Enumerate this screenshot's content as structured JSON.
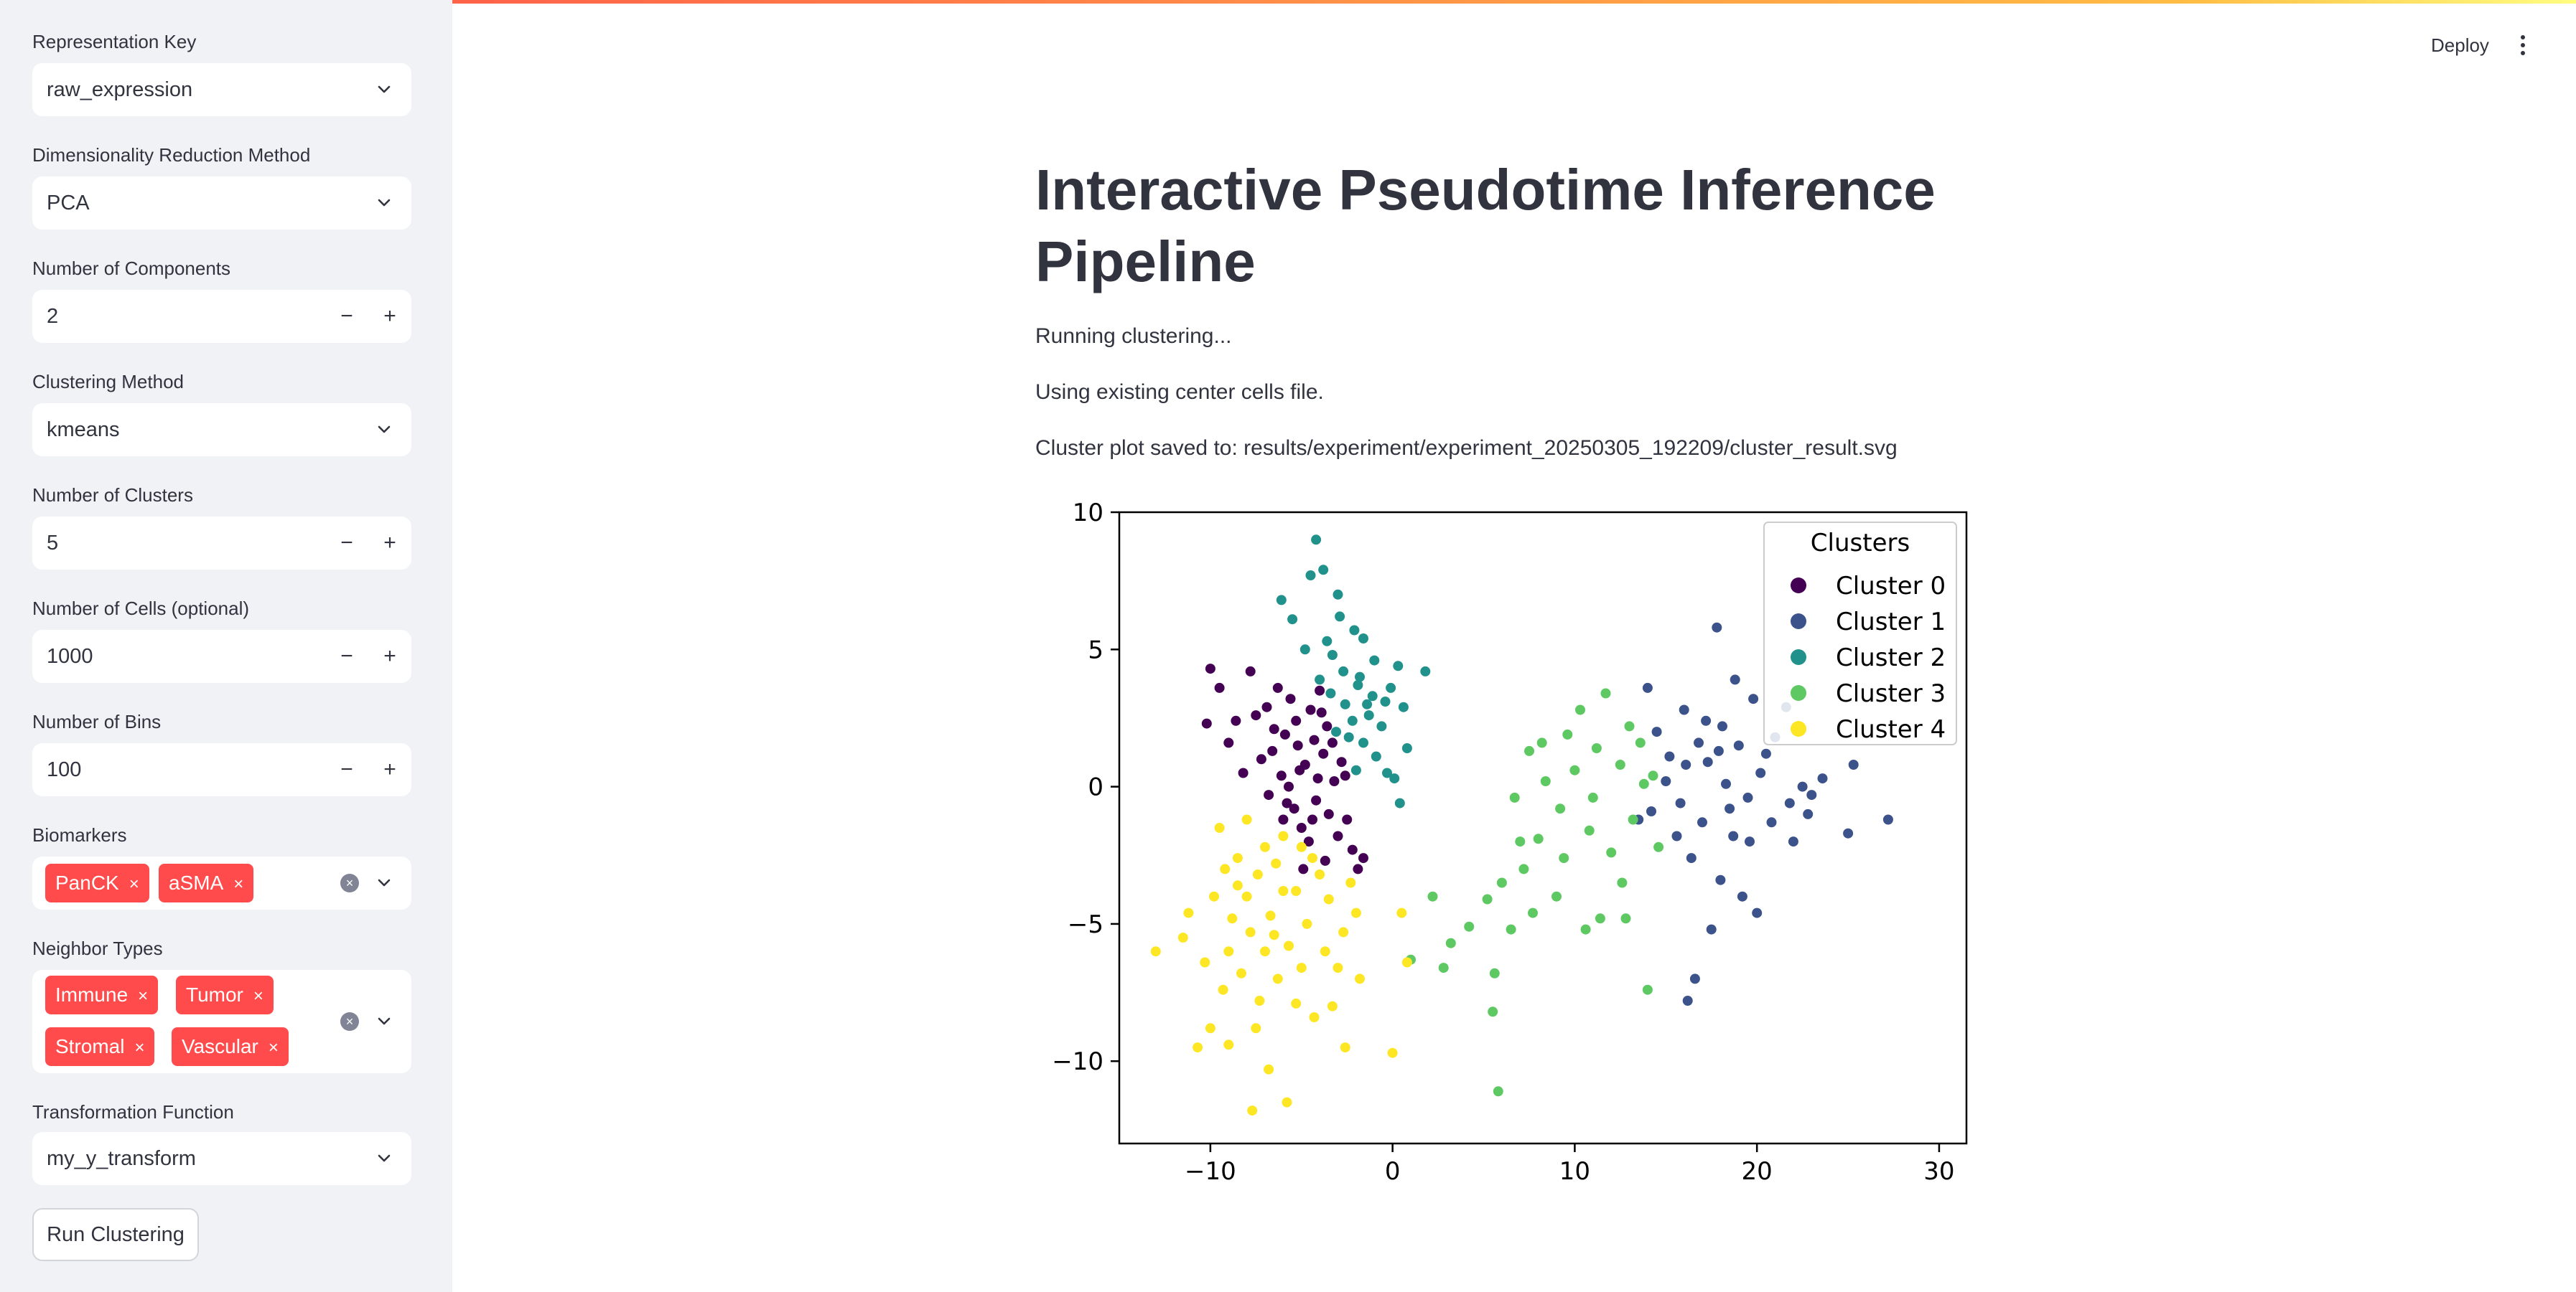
{
  "sidebar": {
    "representation_key": {
      "label": "Representation Key",
      "value": "raw_expression"
    },
    "dim_reduction": {
      "label": "Dimensionality Reduction Method",
      "value": "PCA"
    },
    "n_components": {
      "label": "Number of Components",
      "value": "2"
    },
    "clustering_method": {
      "label": "Clustering Method",
      "value": "kmeans"
    },
    "n_clusters": {
      "label": "Number of Clusters",
      "value": "5"
    },
    "n_cells": {
      "label": "Number of Cells (optional)",
      "value": "1000"
    },
    "n_bins": {
      "label": "Number of Bins",
      "value": "100"
    },
    "biomarkers": {
      "label": "Biomarkers",
      "tags": [
        "PanCK",
        "aSMA"
      ]
    },
    "neighbor_types": {
      "label": "Neighbor Types",
      "tags": [
        "Immune",
        "Tumor",
        "Stromal",
        "Vascular"
      ]
    },
    "transform": {
      "label": "Transformation Function",
      "value": "my_y_transform"
    },
    "stepper_minus": "−",
    "stepper_plus": "+",
    "tag_remove": "×",
    "run_button": "Run Clustering"
  },
  "header": {
    "deploy": "Deploy"
  },
  "main": {
    "title": "Interactive Pseudotime Inference Pipeline",
    "messages": [
      "Running clustering...",
      "Using existing center cells file.",
      "Cluster plot saved to: results/experiment/experiment_20250305_192209/cluster_result.svg"
    ]
  },
  "colors": {
    "accent": "#ff4b4b",
    "cluster0": "#440154",
    "cluster1": "#3b528b",
    "cluster2": "#21918c",
    "cluster3": "#5ec962",
    "cluster4": "#fde725"
  },
  "chart_data": {
    "type": "scatter",
    "title": "",
    "xlabel": "",
    "ylabel": "",
    "xlim": [
      -15,
      31.5
    ],
    "ylim": [
      -13,
      10
    ],
    "xticks": [
      -10,
      0,
      10,
      20,
      30
    ],
    "yticks": [
      10,
      5,
      0,
      -5,
      -10
    ],
    "grid": false,
    "legend": {
      "title": "Clusters",
      "position": "top-right"
    },
    "series": [
      {
        "name": "Cluster 0",
        "color": "#440154",
        "points": [
          [
            -5.2,
            1.5
          ],
          [
            -4.5,
            2.8
          ],
          [
            -6.1,
            0.4
          ],
          [
            -3.8,
            1.2
          ],
          [
            -5.6,
            3.2
          ],
          [
            -4.2,
            -0.5
          ],
          [
            -6.5,
            2.1
          ],
          [
            -3.5,
            -1.0
          ],
          [
            -5.0,
            -1.5
          ],
          [
            -4.8,
            0.8
          ],
          [
            -6.8,
            -0.3
          ],
          [
            -3.2,
            0.2
          ],
          [
            -5.9,
            1.9
          ],
          [
            -4.0,
            3.5
          ],
          [
            -6.3,
            3.6
          ],
          [
            -7.2,
            1.0
          ],
          [
            -7.5,
            2.6
          ],
          [
            -5.4,
            -0.8
          ],
          [
            -4.6,
            -2.0
          ],
          [
            -3.0,
            -1.8
          ],
          [
            -2.5,
            -1.2
          ],
          [
            -3.6,
            2.2
          ],
          [
            -4.3,
            1.7
          ],
          [
            -5.7,
            0.0
          ],
          [
            -6.0,
            -1.2
          ],
          [
            -2.8,
            0.9
          ],
          [
            -8.2,
            0.5
          ],
          [
            -9.5,
            3.6
          ],
          [
            -10.2,
            2.3
          ],
          [
            -9.0,
            1.6
          ],
          [
            -10.0,
            4.3
          ],
          [
            -8.6,
            2.4
          ],
          [
            -7.8,
            4.2
          ],
          [
            -2.2,
            -2.3
          ],
          [
            -1.9,
            -3.0
          ],
          [
            -1.6,
            -2.6
          ],
          [
            -4.9,
            -3.0
          ],
          [
            -3.7,
            -2.7
          ],
          [
            -5.3,
            2.4
          ],
          [
            -4.1,
            0.3
          ],
          [
            -6.6,
            1.3
          ],
          [
            -3.3,
            1.6
          ],
          [
            -5.1,
            0.6
          ],
          [
            -4.4,
            -1.2
          ],
          [
            -5.8,
            -0.6
          ],
          [
            -6.9,
            2.9
          ],
          [
            -3.9,
            2.7
          ],
          [
            -2.6,
            0.4
          ]
        ]
      },
      {
        "name": "Cluster 1",
        "color": "#3b528b",
        "points": [
          [
            14.5,
            2.0
          ],
          [
            15.2,
            1.1
          ],
          [
            16.0,
            2.8
          ],
          [
            17.3,
            0.9
          ],
          [
            18.1,
            2.2
          ],
          [
            19.0,
            1.5
          ],
          [
            20.2,
            0.5
          ],
          [
            21.0,
            1.8
          ],
          [
            15.8,
            -0.6
          ],
          [
            17.0,
            -1.3
          ],
          [
            18.5,
            -0.8
          ],
          [
            19.6,
            -2.0
          ],
          [
            20.8,
            -1.3
          ],
          [
            16.4,
            -2.6
          ],
          [
            18.0,
            -3.4
          ],
          [
            19.2,
            -4.0
          ],
          [
            17.5,
            -5.2
          ],
          [
            16.6,
            -7.0
          ],
          [
            16.2,
            -7.8
          ],
          [
            13.5,
            -1.2
          ],
          [
            14.0,
            3.6
          ],
          [
            18.8,
            3.9
          ],
          [
            19.8,
            3.2
          ],
          [
            21.6,
            2.9
          ],
          [
            17.8,
            5.8
          ],
          [
            22.8,
            -1.0
          ],
          [
            23.6,
            0.3
          ],
          [
            25.0,
            -1.7
          ],
          [
            25.3,
            0.8
          ],
          [
            27.2,
            -1.2
          ],
          [
            22.0,
            -2.0
          ],
          [
            20.0,
            -4.6
          ],
          [
            15.0,
            0.2
          ],
          [
            16.8,
            1.6
          ],
          [
            18.3,
            0.1
          ],
          [
            19.5,
            -0.4
          ],
          [
            14.2,
            -0.9
          ],
          [
            15.6,
            -1.8
          ],
          [
            17.2,
            2.4
          ],
          [
            20.5,
            1.2
          ],
          [
            21.8,
            -0.6
          ],
          [
            22.5,
            0.0
          ],
          [
            23.0,
            -0.3
          ],
          [
            18.7,
            -1.8
          ],
          [
            16.1,
            0.8
          ],
          [
            17.9,
            1.3
          ]
        ]
      },
      {
        "name": "Cluster 2",
        "color": "#21918c",
        "points": [
          [
            -4.2,
            9.0
          ],
          [
            -3.8,
            7.9
          ],
          [
            -4.5,
            7.7
          ],
          [
            -6.1,
            6.8
          ],
          [
            -5.5,
            6.1
          ],
          [
            -3.0,
            7.0
          ],
          [
            -2.1,
            5.7
          ],
          [
            -1.6,
            5.4
          ],
          [
            -3.3,
            4.8
          ],
          [
            -2.7,
            4.2
          ],
          [
            -1.9,
            3.7
          ],
          [
            -1.1,
            3.3
          ],
          [
            -0.4,
            3.1
          ],
          [
            0.6,
            2.9
          ],
          [
            1.8,
            4.2
          ],
          [
            0.3,
            4.4
          ],
          [
            -2.2,
            2.4
          ],
          [
            -1.6,
            1.6
          ],
          [
            -0.9,
            1.1
          ],
          [
            -0.3,
            0.5
          ],
          [
            0.4,
            -0.6
          ],
          [
            -2.6,
            3.0
          ],
          [
            -3.1,
            2.0
          ],
          [
            -4.0,
            3.9
          ],
          [
            -1.3,
            2.6
          ],
          [
            -2.0,
            0.6
          ],
          [
            -0.6,
            2.2
          ],
          [
            0.8,
            1.4
          ],
          [
            -3.6,
            5.3
          ],
          [
            -2.9,
            6.2
          ],
          [
            -1.0,
            4.6
          ],
          [
            -0.1,
            3.6
          ],
          [
            -4.8,
            5.0
          ],
          [
            -1.8,
            4.0
          ],
          [
            -2.4,
            1.8
          ],
          [
            0.1,
            0.3
          ],
          [
            -1.4,
            3.0
          ],
          [
            -3.4,
            3.4
          ]
        ]
      },
      {
        "name": "Cluster 3",
        "color": "#5ec962",
        "points": [
          [
            10.0,
            0.6
          ],
          [
            11.2,
            1.4
          ],
          [
            12.5,
            0.8
          ],
          [
            13.6,
            1.6
          ],
          [
            9.2,
            -0.8
          ],
          [
            10.8,
            -1.6
          ],
          [
            12.0,
            -2.4
          ],
          [
            13.2,
            -1.2
          ],
          [
            8.0,
            -1.9
          ],
          [
            7.2,
            -3.0
          ],
          [
            6.0,
            -3.5
          ],
          [
            5.2,
            -4.1
          ],
          [
            4.2,
            -5.1
          ],
          [
            3.2,
            -5.7
          ],
          [
            5.6,
            -6.8
          ],
          [
            5.5,
            -8.2
          ],
          [
            5.8,
            -11.1
          ],
          [
            14.0,
            -7.4
          ],
          [
            12.6,
            -3.5
          ],
          [
            11.4,
            -4.8
          ],
          [
            9.4,
            -2.6
          ],
          [
            8.4,
            0.2
          ],
          [
            7.5,
            1.3
          ],
          [
            6.7,
            -0.4
          ],
          [
            8.2,
            1.6
          ],
          [
            9.6,
            1.9
          ],
          [
            10.3,
            2.8
          ],
          [
            11.7,
            3.4
          ],
          [
            13.0,
            2.2
          ],
          [
            14.3,
            0.4
          ],
          [
            7.7,
            -4.6
          ],
          [
            6.5,
            -5.2
          ],
          [
            2.2,
            -4.0
          ],
          [
            1.0,
            -6.3
          ],
          [
            2.8,
            -6.6
          ],
          [
            10.6,
            -5.2
          ],
          [
            12.8,
            -4.8
          ],
          [
            14.6,
            -2.2
          ],
          [
            9.0,
            -4.0
          ],
          [
            11.0,
            -0.4
          ],
          [
            7.0,
            -2.0
          ],
          [
            13.8,
            0.1
          ]
        ]
      },
      {
        "name": "Cluster 4",
        "color": "#fde725",
        "points": [
          [
            -9.5,
            -1.5
          ],
          [
            -8.5,
            -2.6
          ],
          [
            -7.4,
            -3.2
          ],
          [
            -6.4,
            -2.8
          ],
          [
            -5.3,
            -3.8
          ],
          [
            -4.4,
            -2.6
          ],
          [
            -3.5,
            -4.1
          ],
          [
            -2.3,
            -3.5
          ],
          [
            -9.8,
            -4.0
          ],
          [
            -8.8,
            -4.8
          ],
          [
            -7.8,
            -5.3
          ],
          [
            -6.7,
            -4.7
          ],
          [
            -5.7,
            -5.8
          ],
          [
            -4.7,
            -5.0
          ],
          [
            -3.7,
            -6.0
          ],
          [
            -2.7,
            -5.3
          ],
          [
            -10.3,
            -6.4
          ],
          [
            -9.3,
            -7.4
          ],
          [
            -8.3,
            -6.8
          ],
          [
            -7.3,
            -7.8
          ],
          [
            -6.3,
            -7.0
          ],
          [
            -5.3,
            -7.9
          ],
          [
            -4.3,
            -8.4
          ],
          [
            -3.3,
            -8.0
          ],
          [
            -10.0,
            -8.8
          ],
          [
            -9.0,
            -9.4
          ],
          [
            -7.5,
            -8.8
          ],
          [
            -11.2,
            -4.6
          ],
          [
            -11.5,
            -5.5
          ],
          [
            -13.0,
            -6.0
          ],
          [
            -10.7,
            -9.5
          ],
          [
            -6.8,
            -10.3
          ],
          [
            -7.7,
            -11.8
          ],
          [
            -5.8,
            -11.5
          ],
          [
            -2.6,
            -9.5
          ],
          [
            0.0,
            -9.7
          ],
          [
            -1.8,
            -7.0
          ],
          [
            -2.0,
            -4.6
          ],
          [
            0.8,
            -6.4
          ],
          [
            0.5,
            -4.6
          ],
          [
            -8.0,
            -1.2
          ],
          [
            -6.0,
            -1.8
          ],
          [
            -9.2,
            -3.0
          ],
          [
            -8.0,
            -4.0
          ],
          [
            -6.0,
            -3.8
          ],
          [
            -4.0,
            -3.2
          ],
          [
            -7.0,
            -2.2
          ],
          [
            -5.0,
            -2.2
          ],
          [
            -9.0,
            -6.0
          ],
          [
            -7.0,
            -6.0
          ],
          [
            -5.0,
            -6.6
          ],
          [
            -3.0,
            -6.6
          ],
          [
            -8.5,
            -3.6
          ],
          [
            -6.5,
            -5.4
          ]
        ]
      }
    ]
  }
}
